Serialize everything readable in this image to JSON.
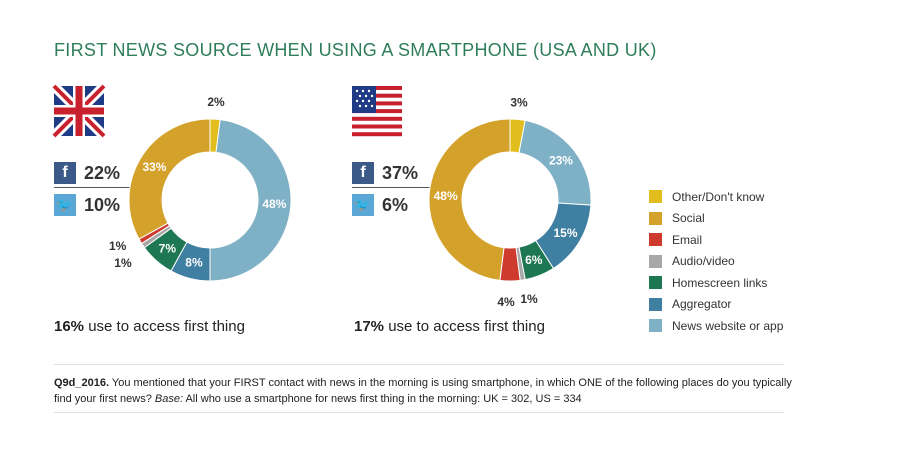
{
  "title": "FIRST NEWS SOURCE WHEN USING A SMARTPHONE (USA AND UK)",
  "colors": {
    "other": "#e2bd1e",
    "social": "#d4a12b",
    "email": "#cf3a2e",
    "audio": "#a8a8a8",
    "homescreen": "#1e7753",
    "aggregator": "#3f7fa1",
    "news": "#7fb1c6"
  },
  "uk": {
    "facebook_label": "f",
    "facebook_value": "22%",
    "twitter_label": "🐦",
    "twitter_value": "10%",
    "access_pct": "16%",
    "access_text": "use to access first thing"
  },
  "us": {
    "facebook_label": "f",
    "facebook_value": "37%",
    "twitter_label": "🐦",
    "twitter_value": "6%",
    "access_pct": "17%",
    "access_text": "use to access first thing"
  },
  "chart_data": [
    {
      "type": "pie",
      "title": "UK",
      "categories": [
        "Other/Don't know",
        "News website or app",
        "Aggregator",
        "Homescreen links",
        "Audio/video",
        "Email",
        "Social"
      ],
      "values": [
        2,
        48,
        8,
        7,
        1,
        1,
        33
      ],
      "labels": [
        "2%",
        "48%",
        "8%",
        "7%",
        "1%",
        "1%",
        "33%"
      ]
    },
    {
      "type": "pie",
      "title": "USA",
      "categories": [
        "Other/Don't know",
        "News website or app",
        "Aggregator",
        "Homescreen links",
        "Audio/video",
        "Email",
        "Social"
      ],
      "values": [
        3,
        23,
        15,
        6,
        1,
        4,
        48
      ],
      "labels": [
        "3%",
        "23%",
        "15%",
        "6%",
        "1%",
        "4%",
        "48%"
      ]
    }
  ],
  "legend": [
    {
      "label": "Other/Don't know",
      "key": "other"
    },
    {
      "label": "Social",
      "key": "social"
    },
    {
      "label": "Email",
      "key": "email"
    },
    {
      "label": "Audio/video",
      "key": "audio"
    },
    {
      "label": "Homescreen links",
      "key": "homescreen"
    },
    {
      "label": "Aggregator",
      "key": "aggregator"
    },
    {
      "label": "News website or app",
      "key": "news"
    }
  ],
  "footnote": {
    "qid": "Q9d_2016.",
    "question": " You mentioned that your FIRST contact with news in the morning is using smartphone, in which ONE of the following places do you typically find your first news? ",
    "base_label": "Base:",
    "base_text": " All who use a smartphone for news first thing in the morning: UK = 302, US = 334"
  }
}
